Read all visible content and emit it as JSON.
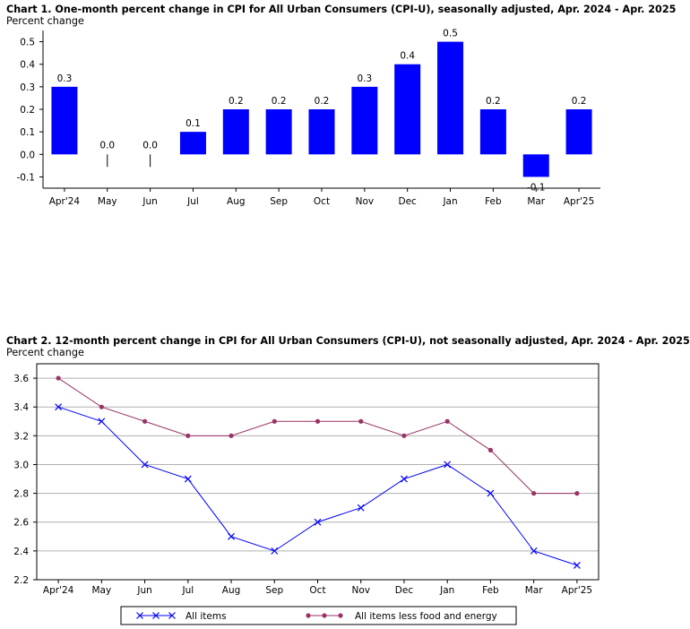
{
  "chart_data": [
    {
      "type": "bar",
      "title": "Chart 1. One-month percent change in CPI for All Urban Consumers (CPI-U), seasonally adjusted, Apr. 2024 - Apr. 2025",
      "ylabel": "Percent change",
      "categories": [
        "Apr'24",
        "May",
        "Jun",
        "Jul",
        "Aug",
        "Sep",
        "Oct",
        "Nov",
        "Dec",
        "Jan",
        "Feb",
        "Mar",
        "Apr'25"
      ],
      "values": [
        0.3,
        0.0,
        0.0,
        0.1,
        0.2,
        0.2,
        0.2,
        0.3,
        0.4,
        0.5,
        0.2,
        -0.1,
        0.2
      ],
      "value_labels": [
        "0.3",
        "0.0",
        "0.0",
        "0.1",
        "0.2",
        "0.2",
        "0.2",
        "0.3",
        "0.4",
        "0.5",
        "0.2",
        "-0.1",
        "0.2"
      ],
      "ylim": [
        -0.15,
        0.55
      ],
      "yticks": [
        0.5,
        0.4,
        0.3,
        0.2,
        0.1,
        0.0,
        -0.1
      ],
      "ytick_labels": [
        "0.5",
        "0.4",
        "0.3",
        "0.2",
        "0.1",
        "0.0",
        "-0.1"
      ],
      "bar_color": "#0000ff",
      "grid": false
    },
    {
      "type": "line",
      "title": "Chart 2. 12-month percent change in CPI for All Urban Consumers (CPI-U), not seasonally adjusted, Apr. 2024 - Apr. 2025",
      "ylabel": "Percent change",
      "categories": [
        "Apr'24",
        "May",
        "Jun",
        "Jul",
        "Aug",
        "Sep",
        "Oct",
        "Nov",
        "Dec",
        "Jan",
        "Feb",
        "Mar",
        "Apr'25"
      ],
      "series": [
        {
          "name": "All items",
          "color": "#0000ff",
          "marker": "x",
          "values": [
            3.4,
            3.3,
            3.0,
            2.9,
            2.5,
            2.4,
            2.6,
            2.7,
            2.9,
            3.0,
            2.8,
            2.4,
            2.3
          ]
        },
        {
          "name": "All items less food and energy",
          "color": "#993366",
          "marker": "circle",
          "values": [
            3.6,
            3.4,
            3.3,
            3.2,
            3.2,
            3.3,
            3.3,
            3.3,
            3.2,
            3.3,
            3.1,
            2.8,
            2.8
          ]
        }
      ],
      "ylim": [
        2.2,
        3.7
      ],
      "yticks": [
        3.6,
        3.4,
        3.2,
        3.0,
        2.8,
        2.6,
        2.4,
        2.2
      ],
      "ytick_labels": [
        "3.6",
        "3.4",
        "3.2",
        "3.0",
        "2.8",
        "2.6",
        "2.4",
        "2.2"
      ],
      "grid": true,
      "legend": "bottom"
    }
  ]
}
